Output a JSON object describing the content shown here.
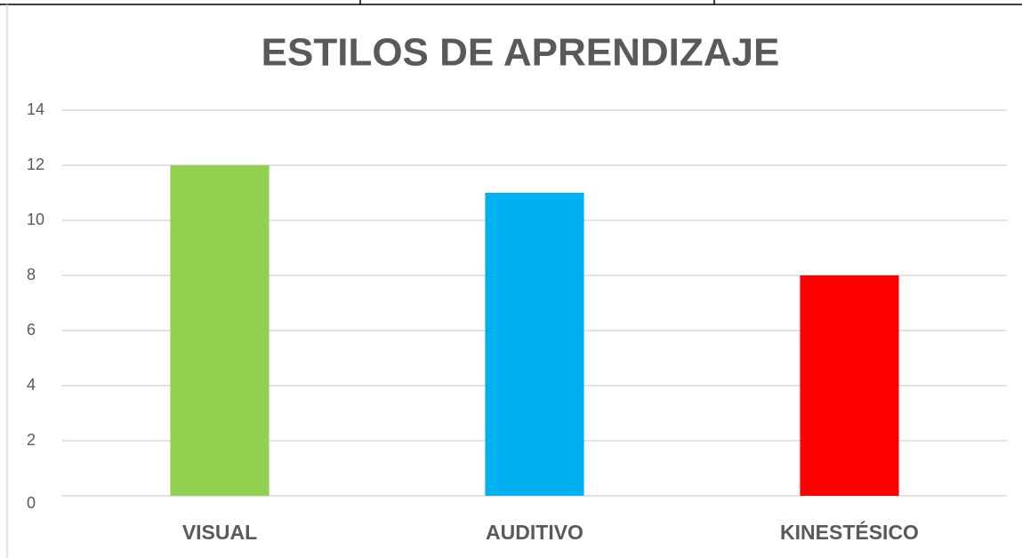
{
  "chart_data": {
    "type": "bar",
    "title": "ESTILOS DE APRENDIZAJE",
    "categories": [
      "VISUAL",
      "AUDITIVO",
      "KINESTÉSICO"
    ],
    "values": [
      12,
      11,
      8
    ],
    "colors": [
      "#92d050",
      "#00b0f0",
      "#ff0000"
    ],
    "ylim": [
      0,
      14
    ],
    "yticks": [
      0,
      2,
      4,
      6,
      8,
      10,
      12,
      14
    ],
    "grid": true
  }
}
